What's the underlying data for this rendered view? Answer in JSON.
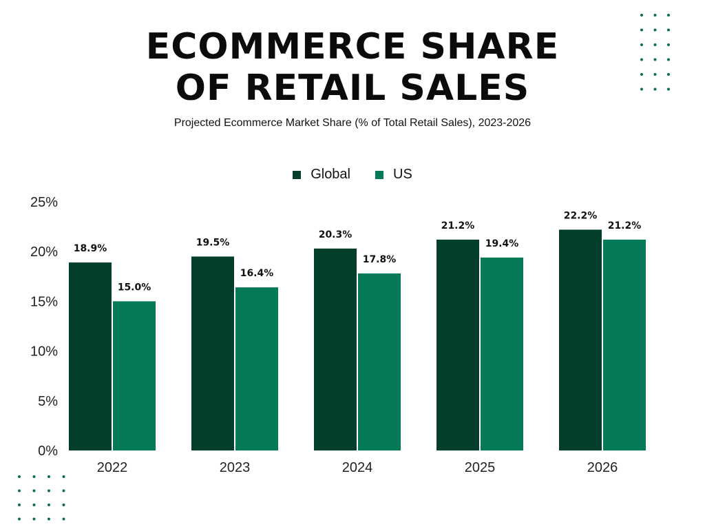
{
  "title": "ECOMMERCE SHARE\nOF RETAIL SALES",
  "subtitle": "Projected Ecommerce Market Share (% of Total Retail Sales), 2023-2026",
  "colors": {
    "global": "#033d2b",
    "us": "#057a59",
    "dots": "#0a6e4f"
  },
  "chart_data": {
    "type": "bar",
    "categories": [
      "2022",
      "2023",
      "2024",
      "2025",
      "2026"
    ],
    "series": [
      {
        "name": "Global",
        "values": [
          18.9,
          19.5,
          20.3,
          21.2,
          22.2
        ],
        "labels": [
          "18.9%",
          "19.5%",
          "20.3%",
          "21.2%",
          "22.2%"
        ]
      },
      {
        "name": "US",
        "values": [
          15.0,
          16.4,
          17.8,
          19.4,
          21.2
        ],
        "labels": [
          "15.0%",
          "16.4%",
          "17.8%",
          "19.4%",
          "21.2%"
        ]
      }
    ],
    "ylim": [
      0,
      25
    ],
    "yticks": [
      "0%",
      "5%",
      "10%",
      "15%",
      "20%",
      "25%"
    ],
    "ytick_values": [
      0,
      5,
      10,
      15,
      20,
      25
    ],
    "legend_position": "top-center",
    "grid": false
  }
}
